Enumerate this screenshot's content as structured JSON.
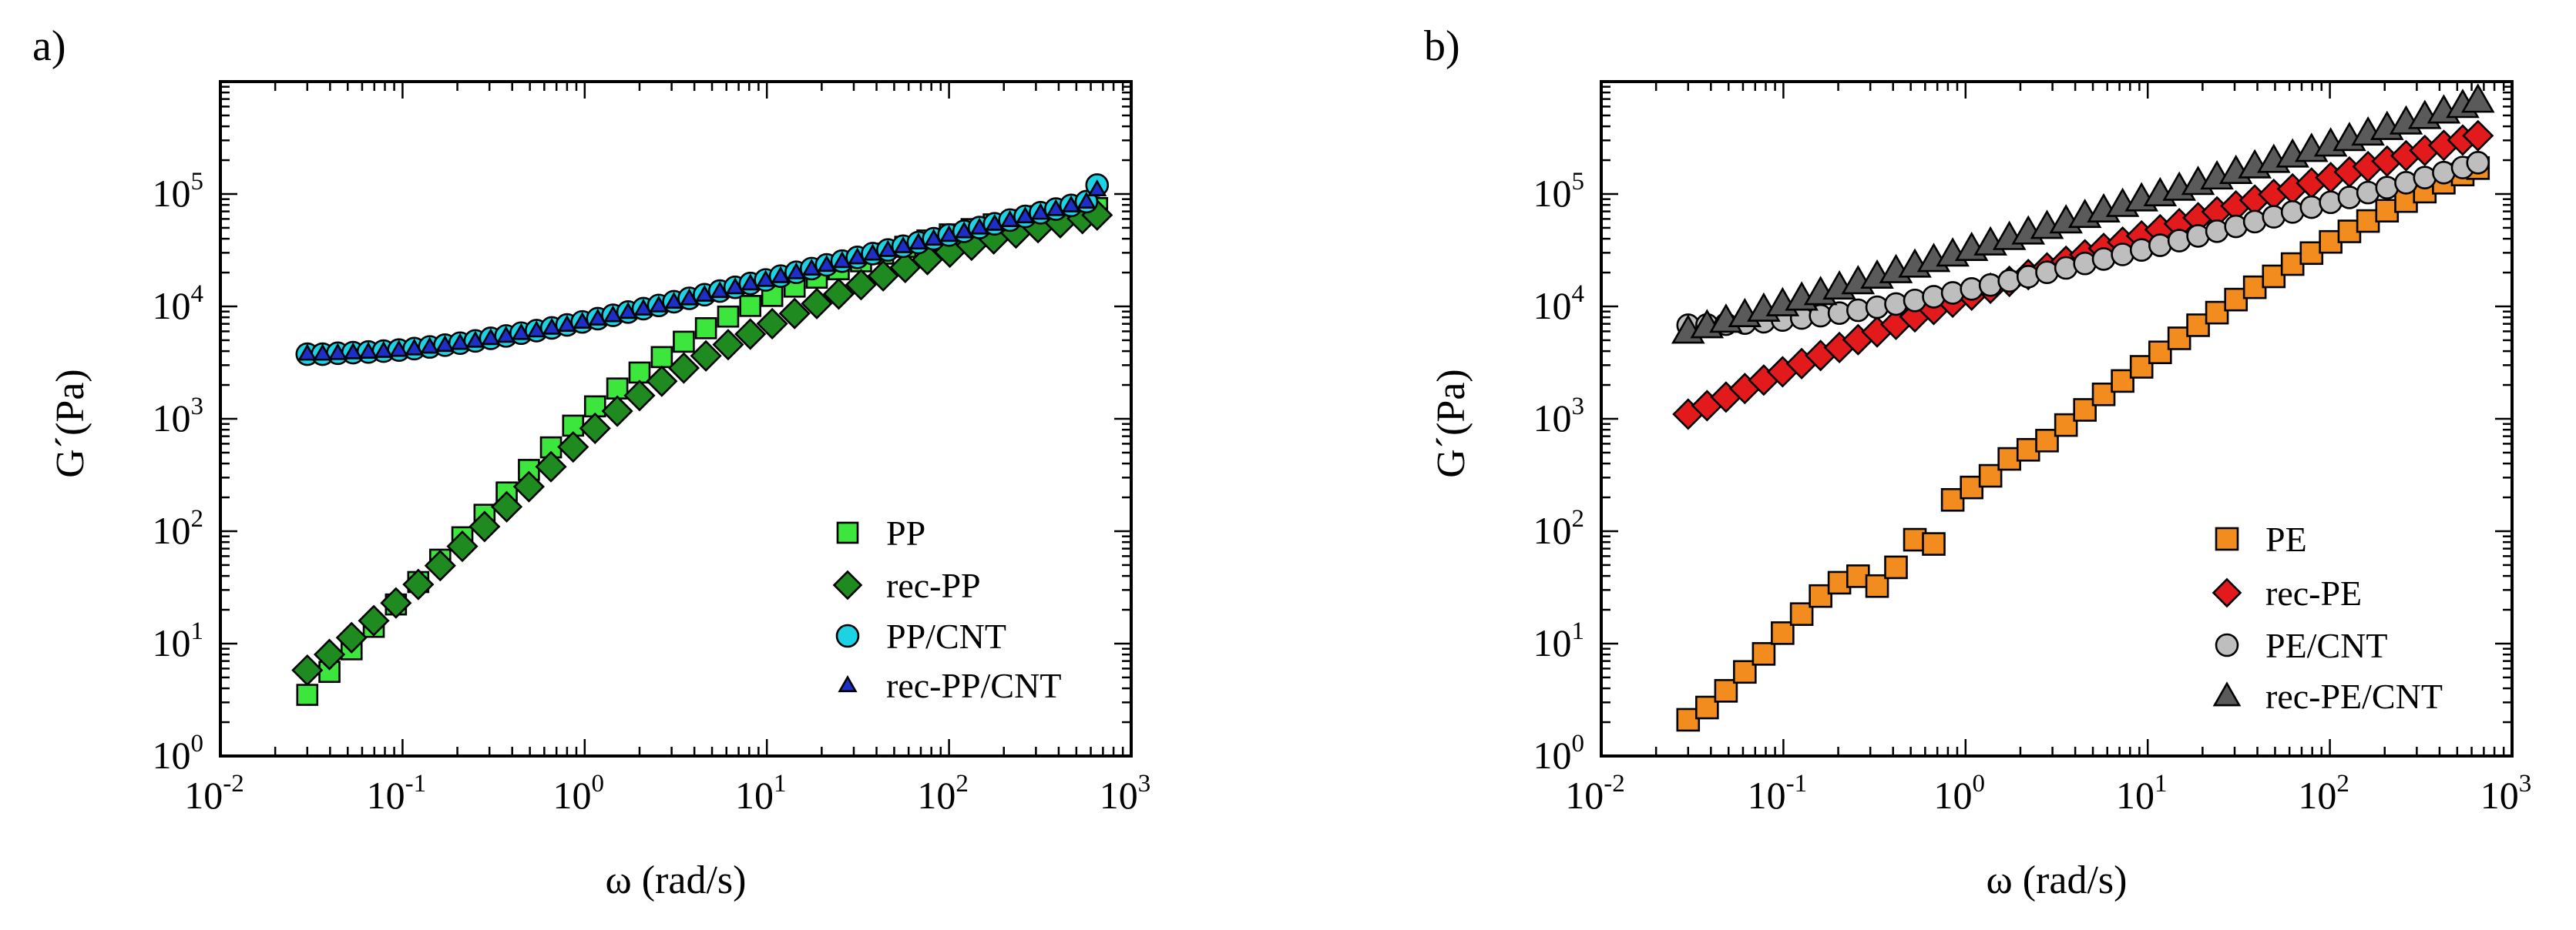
{
  "chart_data": [
    {
      "type": "scatter",
      "panel_label": "a)",
      "xlabel": "ω (rad/s)",
      "ylabel": "G´(Pa)",
      "xscale": "log",
      "yscale": "log",
      "xlim": [
        0.01,
        1000
      ],
      "ylim": [
        1,
        1000000
      ],
      "x_ticks": [
        {
          "base": "10",
          "exp": "-2"
        },
        {
          "base": "10",
          "exp": "-1"
        },
        {
          "base": "10",
          "exp": "0"
        },
        {
          "base": "10",
          "exp": "1"
        },
        {
          "base": "10",
          "exp": "2"
        },
        {
          "base": "10",
          "exp": "3"
        }
      ],
      "y_ticks": [
        {
          "base": "10",
          "exp": "0"
        },
        {
          "base": "10",
          "exp": "1"
        },
        {
          "base": "10",
          "exp": "2"
        },
        {
          "base": "10",
          "exp": "3"
        },
        {
          "base": "10",
          "exp": "4"
        },
        {
          "base": "10",
          "exp": "5"
        }
      ],
      "legend_position": "bottom-right",
      "series": [
        {
          "name": "PP",
          "marker": "square",
          "color": "#3CE63C",
          "size": 13,
          "x": [
            0.03,
            0.0397,
            0.0525,
            0.0695,
            0.092,
            0.122,
            0.161,
            0.213,
            0.282,
            0.373,
            0.494,
            0.653,
            0.864,
            1.14,
            1.51,
            2.0,
            2.65,
            3.5,
            4.63,
            6.13,
            8.11,
            10.7,
            14.2,
            18.8,
            24.8,
            32.9,
            43.5,
            57.5,
            76.1,
            101,
            133,
            176,
            233,
            308,
            408,
            540,
            650
          ],
          "y": [
            3.5,
            5.6,
            8.9,
            14.1,
            22.3,
            35.3,
            55.8,
            88.3,
            140,
            221,
            351,
            557,
            869,
            1290,
            1860,
            2580,
            3540,
            4850,
            6400,
            8120,
            10100,
            12400,
            15000,
            18000,
            21400,
            25200,
            29500,
            33900,
            38600,
            43700,
            48700,
            53700,
            58600,
            63500,
            68100,
            72000,
            75000
          ]
        },
        {
          "name": "rec-PP",
          "marker": "diamond",
          "color": "#1F8A1F",
          "size": 15,
          "x": [
            0.03,
            0.0397,
            0.0525,
            0.0695,
            0.092,
            0.122,
            0.161,
            0.213,
            0.282,
            0.373,
            0.494,
            0.653,
            0.864,
            1.14,
            1.51,
            2.0,
            2.65,
            3.5,
            4.63,
            6.13,
            8.11,
            10.7,
            14.2,
            18.8,
            24.8,
            32.9,
            43.5,
            57.5,
            76.1,
            101,
            133,
            176,
            233,
            308,
            408,
            540,
            650
          ],
          "y": [
            5.8,
            8.0,
            11.3,
            16.0,
            23.0,
            33.6,
            49.4,
            73.4,
            110,
            165,
            249,
            375,
            562,
            823,
            1170,
            1610,
            2160,
            2830,
            3630,
            4570,
            5670,
            7020,
            8650,
            10600,
            12900,
            15600,
            18700,
            22200,
            26100,
            30400,
            35000,
            39900,
            45000,
            50200,
            55400,
            60500,
            65000
          ]
        },
        {
          "name": "PP/CNT",
          "marker": "circle",
          "color": "#1ED2E6",
          "size": 14,
          "x": [
            0.03,
            0.0364,
            0.0441,
            0.0535,
            0.0649,
            0.0787,
            0.0955,
            0.116,
            0.141,
            0.171,
            0.207,
            0.251,
            0.305,
            0.37,
            0.448,
            0.544,
            0.66,
            0.8,
            0.97,
            1.18,
            1.43,
            1.73,
            2.1,
            2.55,
            3.09,
            3.75,
            4.55,
            5.52,
            6.7,
            8.12,
            9.85,
            11.9,
            14.5,
            17.6,
            21.3,
            25.9,
            31.4,
            38.1,
            46.2,
            56.0,
            67.9,
            82.4,
            100,
            121,
            147,
            178,
            216,
            262,
            318,
            386,
            468,
            568,
            650
          ],
          "y": [
            3760,
            3760,
            3830,
            3880,
            3930,
            4000,
            4090,
            4210,
            4360,
            4520,
            4710,
            4930,
            5200,
            5460,
            5780,
            6090,
            6440,
            6840,
            7280,
            7780,
            8330,
            8910,
            9550,
            10200,
            11000,
            11800,
            12700,
            13700,
            14800,
            16000,
            17200,
            18600,
            20100,
            21700,
            23400,
            25300,
            27300,
            29500,
            31800,
            34300,
            37000,
            40000,
            43200,
            46600,
            50300,
            54300,
            58600,
            63200,
            68100,
            73500,
            79200,
            85500,
            120000
          ]
        },
        {
          "name": "rec-PP/CNT",
          "marker": "triangle",
          "color": "#1E2FC8",
          "size": 9,
          "x": [
            0.03,
            0.0364,
            0.0441,
            0.0535,
            0.0649,
            0.0787,
            0.0955,
            0.116,
            0.141,
            0.171,
            0.207,
            0.251,
            0.305,
            0.37,
            0.448,
            0.544,
            0.66,
            0.8,
            0.97,
            1.18,
            1.43,
            1.73,
            2.1,
            2.55,
            3.09,
            3.75,
            4.55,
            5.52,
            6.7,
            8.12,
            9.85,
            11.9,
            14.5,
            17.6,
            21.3,
            25.9,
            31.4,
            38.1,
            46.2,
            56.0,
            67.9,
            82.4,
            100,
            121,
            147,
            178,
            216,
            262,
            318,
            386,
            468,
            568,
            650
          ],
          "y": [
            3800,
            3800,
            3850,
            3900,
            3950,
            4020,
            4110,
            4230,
            4380,
            4540,
            4730,
            4950,
            5220,
            5480,
            5800,
            6110,
            6460,
            6860,
            7300,
            7800,
            8350,
            8930,
            9570,
            10200,
            11000,
            11800,
            12700,
            13700,
            14800,
            16000,
            17200,
            18600,
            20100,
            21700,
            23400,
            25300,
            27300,
            29500,
            31800,
            34300,
            37000,
            40000,
            43200,
            46600,
            50300,
            54300,
            58600,
            63200,
            68100,
            73500,
            79200,
            85500,
            110000
          ]
        }
      ]
    },
    {
      "type": "scatter",
      "panel_label": "b)",
      "xlabel": "ω (rad/s)",
      "ylabel": "G´(Pa)",
      "xscale": "log",
      "yscale": "log",
      "xlim": [
        0.01,
        1000
      ],
      "ylim": [
        1,
        1000000
      ],
      "x_ticks": [
        {
          "base": "10",
          "exp": "-2"
        },
        {
          "base": "10",
          "exp": "-1"
        },
        {
          "base": "10",
          "exp": "0"
        },
        {
          "base": "10",
          "exp": "1"
        },
        {
          "base": "10",
          "exp": "2"
        },
        {
          "base": "10",
          "exp": "3"
        }
      ],
      "y_ticks": [
        {
          "base": "10",
          "exp": "0"
        },
        {
          "base": "10",
          "exp": "1"
        },
        {
          "base": "10",
          "exp": "2"
        },
        {
          "base": "10",
          "exp": "3"
        },
        {
          "base": "10",
          "exp": "4"
        },
        {
          "base": "10",
          "exp": "5"
        }
      ],
      "legend_position": "bottom-right",
      "series": [
        {
          "name": "PE",
          "marker": "square",
          "color": "#F28C1E",
          "size": 14,
          "x": [
            0.03,
            0.0381,
            0.0484,
            0.0614,
            0.078,
            0.099,
            0.126,
            0.16,
            0.203,
            0.257,
            0.327,
            0.415,
            0.527,
            0.669,
            0.85,
            1.08,
            1.37,
            1.74,
            2.21,
            2.8,
            3.56,
            4.52,
            5.73,
            7.28,
            9.25,
            11.7,
            14.9,
            18.9,
            24.0,
            30.5,
            38.7,
            49.2,
            62.4,
            79.3,
            101,
            128,
            162,
            206,
            262,
            332,
            422,
            536,
            650
          ],
          "y": [
            2.1,
            2.7,
            3.8,
            5.6,
            8.1,
            12.4,
            18.3,
            26.5,
            34.8,
            39.8,
            32.5,
            47.7,
            84.0,
            77.0,
            190,
            245,
            311,
            440,
            530,
            640,
            880,
            1200,
            1650,
            2170,
            2900,
            3900,
            5200,
            6800,
            8800,
            11500,
            14800,
            18500,
            23800,
            29800,
            37500,
            46500,
            57500,
            71000,
            86500,
            105000,
            126000,
            149000,
            170000
          ]
        },
        {
          "name": "rec-PE",
          "marker": "diamond",
          "color": "#E31A1C",
          "size": 15,
          "x": [
            0.03,
            0.0381,
            0.0484,
            0.0614,
            0.078,
            0.099,
            0.126,
            0.16,
            0.203,
            0.257,
            0.327,
            0.415,
            0.527,
            0.669,
            0.85,
            1.08,
            1.37,
            1.74,
            2.21,
            2.8,
            3.56,
            4.52,
            5.73,
            7.28,
            9.25,
            11.7,
            14.9,
            18.9,
            24.0,
            30.5,
            38.7,
            49.2,
            62.4,
            79.3,
            101,
            128,
            162,
            206,
            262,
            332,
            422,
            536,
            650
          ],
          "y": [
            1100,
            1310,
            1560,
            1860,
            2210,
            2620,
            3100,
            3660,
            4310,
            5060,
            5930,
            6930,
            8080,
            9390,
            10900,
            12600,
            14500,
            16700,
            19200,
            22000,
            25200,
            28800,
            32800,
            37300,
            42400,
            48100,
            54400,
            61500,
            69400,
            78300,
            88200,
            99200,
            111000,
            125000,
            140000,
            157000,
            175000,
            196000,
            219000,
            244000,
            271000,
            302000,
            330000
          ]
        },
        {
          "name": "PE/CNT",
          "marker": "circle",
          "color": "#BEBEBE",
          "size": 14,
          "x": [
            0.03,
            0.0381,
            0.0484,
            0.0614,
            0.078,
            0.099,
            0.126,
            0.16,
            0.203,
            0.257,
            0.327,
            0.415,
            0.527,
            0.669,
            0.85,
            1.08,
            1.37,
            1.74,
            2.21,
            2.8,
            3.56,
            4.52,
            5.73,
            7.28,
            9.25,
            11.7,
            14.9,
            18.9,
            24.0,
            30.5,
            38.7,
            49.2,
            62.4,
            79.3,
            101,
            128,
            162,
            206,
            262,
            332,
            422,
            536,
            650
          ],
          "y": [
            6800,
            6850,
            6950,
            7100,
            7300,
            7560,
            7880,
            8270,
            8720,
            9240,
            9840,
            10500,
            11300,
            12200,
            13200,
            14300,
            15500,
            16900,
            18400,
            20100,
            22000,
            24100,
            26400,
            29000,
            31800,
            35000,
            38500,
            42400,
            46700,
            51500,
            56800,
            62700,
            69200,
            76400,
            84400,
            93300,
            103000,
            114000,
            126000,
            140000,
            155000,
            172000,
            190000
          ]
        },
        {
          "name": "rec-PE/CNT",
          "marker": "triangle",
          "color": "#5A5A5A",
          "size": 17,
          "x": [
            0.03,
            0.0381,
            0.0484,
            0.0614,
            0.078,
            0.099,
            0.126,
            0.16,
            0.203,
            0.257,
            0.327,
            0.415,
            0.527,
            0.669,
            0.85,
            1.08,
            1.37,
            1.74,
            2.21,
            2.8,
            3.56,
            4.52,
            5.73,
            7.28,
            9.25,
            11.7,
            14.9,
            18.9,
            24.0,
            30.5,
            38.7,
            49.2,
            62.4,
            79.3,
            101,
            128,
            162,
            206,
            262,
            332,
            422,
            536,
            650
          ],
          "y": [
            6000,
            6700,
            7500,
            8400,
            9400,
            10500,
            11800,
            13200,
            14800,
            16500,
            18500,
            20700,
            23200,
            26000,
            29100,
            32600,
            36500,
            40800,
            45700,
            51200,
            57300,
            64100,
            71800,
            80400,
            90000,
            100000,
            112000,
            126000,
            141000,
            158000,
            177000,
            198000,
            221000,
            248000,
            277000,
            310000,
            347000,
            389000,
            435000,
            487000,
            545000,
            610000,
            680000
          ]
        }
      ]
    }
  ]
}
